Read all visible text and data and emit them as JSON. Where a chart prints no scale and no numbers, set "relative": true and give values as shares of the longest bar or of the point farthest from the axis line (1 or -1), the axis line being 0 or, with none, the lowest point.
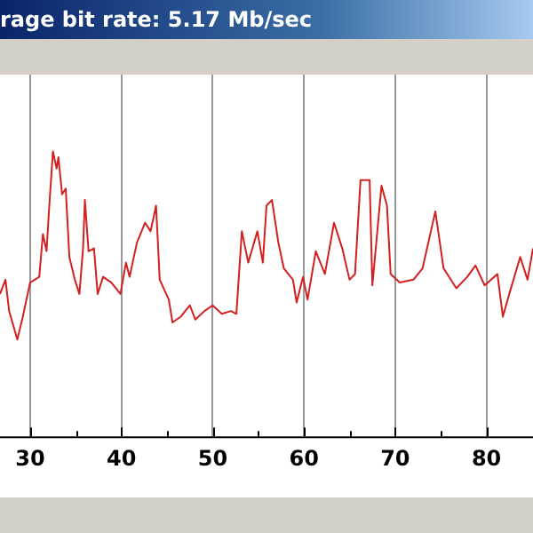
{
  "chart_data": {
    "type": "line",
    "title": "rage bit rate: 5.17 Mb/sec",
    "relative": true,
    "grid": "x",
    "line_style": "solid",
    "marker": "none",
    "xlim": [
      26.7,
      85.1
    ],
    "xticks": [
      30,
      {
        "value": 35,
        "label": null
      },
      40,
      {
        "value": 45,
        "label": null
      },
      50,
      {
        "value": 55,
        "label": null
      },
      60,
      {
        "value": 65,
        "label": null
      },
      70,
      {
        "value": 75,
        "label": null
      },
      80
    ],
    "series": [
      {
        "color": "#d42020",
        "x": [
          26.7,
          27.3,
          27.7,
          28.6,
          29.2,
          30.0,
          31.0,
          31.4,
          31.8,
          32.1,
          32.5,
          32.9,
          33.1,
          33.5,
          33.9,
          34.3,
          34.9,
          35.4,
          35.8,
          36.0,
          36.4,
          37.0,
          37.4,
          38.0,
          38.9,
          39.9,
          40.5,
          40.9,
          41.7,
          42.6,
          43.2,
          43.8,
          44.2,
          45.2,
          45.6,
          46.5,
          47.5,
          48.1,
          49.1,
          50.0,
          51.0,
          52.0,
          52.6,
          53.2,
          53.9,
          54.9,
          55.5,
          55.9,
          56.5,
          57.2,
          57.8,
          58.8,
          59.2,
          59.9,
          60.4,
          61.3,
          62.3,
          63.3,
          64.2,
          65.0,
          65.6,
          66.2,
          67.2,
          67.5,
          68.5,
          69.1,
          69.5,
          70.5,
          72.0,
          73.0,
          74.4,
          75.3,
          76.7,
          77.9,
          78.8,
          79.8,
          81.2,
          81.8,
          82.5,
          83.7,
          84.5,
          85.1
        ],
        "values": [
          0.5,
          0.55,
          0.44,
          0.34,
          0.42,
          0.54,
          0.56,
          0.71,
          0.65,
          0.81,
          1,
          0.94,
          0.98,
          0.85,
          0.87,
          0.63,
          0.55,
          0.5,
          0.66,
          0.83,
          0.65,
          0.66,
          0.5,
          0.56,
          0.54,
          0.5,
          0.61,
          0.56,
          0.68,
          0.75,
          0.72,
          0.81,
          0.55,
          0.48,
          0.4,
          0.42,
          0.46,
          0.41,
          0.44,
          0.46,
          0.43,
          0.44,
          0.43,
          0.72,
          0.61,
          0.72,
          0.61,
          0.81,
          0.83,
          0.68,
          0.59,
          0.55,
          0.47,
          0.56,
          0.48,
          0.65,
          0.57,
          0.75,
          0.66,
          0.55,
          0.57,
          0.9,
          0.9,
          0.53,
          0.88,
          0.81,
          0.57,
          0.54,
          0.55,
          0.59,
          0.79,
          0.59,
          0.52,
          0.56,
          0.6,
          0.53,
          0.57,
          0.42,
          0.5,
          0.63,
          0.55,
          0.66
        ]
      }
    ]
  }
}
